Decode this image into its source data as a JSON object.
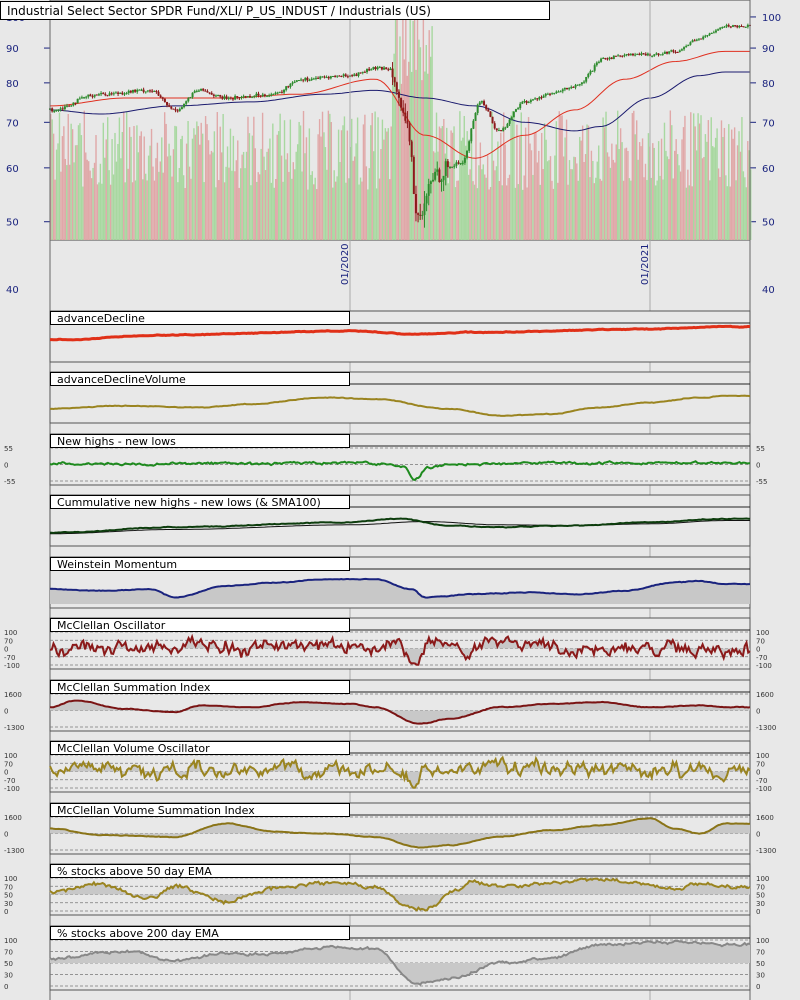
{
  "header": {
    "title": "Industrial Select Sector SPDR Fund/XLI/ P_US_INDUST / Industrials (US)"
  },
  "chart_data": [
    {
      "type": "candlestick",
      "name": "price",
      "title": "Industrial Select Sector SPDR Fund/XLI/ P_US_INDUST / Industrials (US)",
      "scale": "log",
      "ylim": [
        47,
        101
      ],
      "yticks": [
        40,
        50,
        60,
        70,
        80,
        90,
        100
      ],
      "x_tick_labels": [
        "01/2020",
        "01/2021"
      ],
      "x_range": [
        "2019-01",
        "2021-05"
      ],
      "anchors": [
        [
          "2019-01",
          73
        ],
        [
          "2019-03",
          77
        ],
        [
          "2019-05",
          78
        ],
        [
          "2019-06",
          73
        ],
        [
          "2019-07",
          78
        ],
        [
          "2019-08",
          76
        ],
        [
          "2019-10",
          77
        ],
        [
          "2019-11",
          81
        ],
        [
          "2020-01",
          82
        ],
        [
          "2020-02",
          84
        ],
        [
          "2020-02-20",
          84
        ],
        [
          "2020-03-10",
          68
        ],
        [
          "2020-03-23",
          50
        ],
        [
          "2020-04-15",
          59
        ],
        [
          "2020-05-15",
          61
        ],
        [
          "2020-06-08",
          75
        ],
        [
          "2020-06-30",
          68
        ],
        [
          "2020-08",
          75
        ],
        [
          "2020-09",
          77
        ],
        [
          "2020-10",
          79
        ],
        [
          "2020-11-09",
          87
        ],
        [
          "2020-12",
          88
        ],
        [
          "2021-01",
          88
        ],
        [
          "2021-02",
          89
        ],
        [
          "2021-03",
          93
        ],
        [
          "2021-04",
          97
        ]
      ],
      "sma_red_anchors": [
        [
          "2019-01",
          74
        ],
        [
          "2019-04",
          76
        ],
        [
          "2019-08",
          76
        ],
        [
          "2019-11",
          77
        ],
        [
          "2020-02",
          81
        ],
        [
          "2020-04",
          67
        ],
        [
          "2020-06",
          62
        ],
        [
          "2020-08",
          67
        ],
        [
          "2020-10",
          73
        ],
        [
          "2020-12",
          81
        ],
        [
          "2021-02",
          86
        ],
        [
          "2021-04",
          89
        ]
      ],
      "sma_blue_anchors": [
        [
          "2019-01",
          73
        ],
        [
          "2019-03",
          72
        ],
        [
          "2019-06",
          74
        ],
        [
          "2019-09",
          75
        ],
        [
          "2019-12",
          77
        ],
        [
          "2020-02",
          78
        ],
        [
          "2020-04",
          76
        ],
        [
          "2020-06",
          74
        ],
        [
          "2020-08",
          70
        ],
        [
          "2020-10",
          68
        ],
        [
          "2020-11",
          69
        ],
        [
          "2021-01",
          76
        ],
        [
          "2021-03",
          82
        ],
        [
          "2021-04",
          83
        ]
      ],
      "colors": {
        "up": "#2e8b2e",
        "down": "#8b1a1a",
        "sma_red": "#e03020",
        "sma_blue": "#1a1a6e",
        "volume_up": "#a8d8a0",
        "volume_down": "#e0a8a8"
      }
    },
    {
      "type": "line",
      "name": "advance-decline",
      "title": "advanceDecline",
      "anchors": [
        [
          "2019-01",
          0.45
        ],
        [
          "2019-06",
          0.3
        ],
        [
          "2020-01",
          0.18
        ],
        [
          "2020-03-20",
          0.28
        ],
        [
          "2020-06",
          0.22
        ],
        [
          "2021-01",
          0.12
        ],
        [
          "2021-04",
          0.05
        ]
      ],
      "color": "#e03018",
      "fill": false,
      "thick": 3
    },
    {
      "type": "line",
      "name": "advance-decline-volume",
      "title": "advanceDeclineVolume",
      "anchors": [
        [
          "2019-01",
          0.7
        ],
        [
          "2019-04",
          0.6
        ],
        [
          "2019-07",
          0.65
        ],
        [
          "2019-09",
          0.55
        ],
        [
          "2019-12",
          0.35
        ],
        [
          "2020-02",
          0.4
        ],
        [
          "2020-05",
          0.7
        ],
        [
          "2020-07",
          0.9
        ],
        [
          "2020-09",
          0.85
        ],
        [
          "2020-11",
          0.65
        ],
        [
          "2021-01",
          0.5
        ],
        [
          "2021-03",
          0.35
        ],
        [
          "2021-04",
          0.3
        ]
      ],
      "color": "#9a8420",
      "fill": false,
      "thick": 2
    },
    {
      "type": "line",
      "name": "new-highs-lows",
      "title": "New highs - new lows",
      "yticks": [
        "55",
        "0",
        "-55"
      ],
      "anchors": [
        [
          "2019-01",
          0.48
        ],
        [
          "2020-02",
          0.46
        ],
        [
          "2020-03-05",
          0.56
        ],
        [
          "2020-03-18",
          0.98
        ],
        [
          "2020-04-05",
          0.6
        ],
        [
          "2020-05",
          0.48
        ],
        [
          "2021-04",
          0.45
        ]
      ],
      "noise": 0.05,
      "color": "#1e8a1e",
      "fill": false,
      "thick": 2
    },
    {
      "type": "line",
      "name": "cumulative-nh-nl",
      "title": "Cummulative new highs - new lows (& SMA100)",
      "anchors": [
        [
          "2019-01",
          0.72
        ],
        [
          "2019-06",
          0.55
        ],
        [
          "2020-01",
          0.4
        ],
        [
          "2020-03",
          0.3
        ],
        [
          "2020-05",
          0.5
        ],
        [
          "2020-07",
          0.55
        ],
        [
          "2020-10",
          0.5
        ],
        [
          "2021-01",
          0.4
        ],
        [
          "2021-04",
          0.3
        ]
      ],
      "sma_anchors": [
        [
          "2019-01",
          0.75
        ],
        [
          "2019-06",
          0.62
        ],
        [
          "2020-01",
          0.48
        ],
        [
          "2020-04",
          0.38
        ],
        [
          "2020-07",
          0.48
        ],
        [
          "2020-10",
          0.5
        ],
        [
          "2021-01",
          0.45
        ],
        [
          "2021-04",
          0.35
        ]
      ],
      "color": "#0d3d0d",
      "sma_color": "#111111",
      "fill": false,
      "thick": 2
    },
    {
      "type": "area",
      "name": "weinstein-momentum",
      "title": "Weinstein Momentum",
      "anchors": [
        [
          "2019-01",
          0.55
        ],
        [
          "2019-03",
          0.6
        ],
        [
          "2019-05",
          0.55
        ],
        [
          "2019-06",
          0.8
        ],
        [
          "2019-08",
          0.45
        ],
        [
          "2019-10",
          0.35
        ],
        [
          "2019-12",
          0.25
        ],
        [
          "2020-02",
          0.25
        ],
        [
          "2020-03-15",
          0.55
        ],
        [
          "2020-04",
          0.8
        ],
        [
          "2020-06",
          0.7
        ],
        [
          "2020-08",
          0.65
        ],
        [
          "2020-10",
          0.7
        ],
        [
          "2020-12",
          0.6
        ],
        [
          "2021-02",
          0.35
        ],
        [
          "2021-03",
          0.3
        ],
        [
          "2021-04",
          0.4
        ]
      ],
      "color": "#1a237e",
      "fill": true,
      "thick": 2
    },
    {
      "type": "area",
      "name": "mcclellan-oscillator",
      "title": "McClellan Oscillator",
      "yticks": [
        "100",
        "70",
        "0",
        "-70",
        "-100"
      ],
      "anchors": [
        [
          "2019-01",
          0.45
        ],
        [
          "2020-03",
          0.45
        ],
        [
          "2020-03-20",
          0.95
        ],
        [
          "2020-04",
          0.4
        ],
        [
          "2021-04",
          0.5
        ]
      ],
      "noise": 0.28,
      "color": "#8b1a1a",
      "fill": true,
      "thick": 2
    },
    {
      "type": "area",
      "name": "mcclellan-summation",
      "title": "McClellan Summation Index",
      "yticks": [
        "1600",
        "0",
        "-1300"
      ],
      "anchors": [
        [
          "2019-01",
          0.4
        ],
        [
          "2019-02",
          0.2
        ],
        [
          "2019-04",
          0.45
        ],
        [
          "2019-06",
          0.55
        ],
        [
          "2019-07",
          0.35
        ],
        [
          "2019-09",
          0.4
        ],
        [
          "2019-11",
          0.25
        ],
        [
          "2020-01",
          0.3
        ],
        [
          "2020-02",
          0.4
        ],
        [
          "2020-03-25",
          0.9
        ],
        [
          "2020-05",
          0.75
        ],
        [
          "2020-07",
          0.4
        ],
        [
          "2020-09",
          0.3
        ],
        [
          "2020-11",
          0.25
        ],
        [
          "2021-01",
          0.4
        ],
        [
          "2021-03",
          0.35
        ],
        [
          "2021-04",
          0.4
        ]
      ],
      "color": "#7a1414",
      "fill": true,
      "thick": 2
    },
    {
      "type": "area",
      "name": "mcclellan-volume-oscillator",
      "title": "McClellan Volume Oscillator",
      "yticks": [
        "100",
        "70",
        "0",
        "-70",
        "-100"
      ],
      "anchors": [
        [
          "2019-01",
          0.5
        ],
        [
          "2020-03",
          0.5
        ],
        [
          "2020-03-20",
          0.9
        ],
        [
          "2020-04",
          0.4
        ],
        [
          "2021-04",
          0.5
        ]
      ],
      "noise": 0.3,
      "color": "#9a8420",
      "fill": true,
      "thick": 2
    },
    {
      "type": "area",
      "name": "mcclellan-volume-summation",
      "title": "McClellan Volume Summation Index",
      "yticks": [
        "1600",
        "0",
        "-1300"
      ],
      "anchors": [
        [
          "2019-01",
          0.35
        ],
        [
          "2019-03",
          0.55
        ],
        [
          "2019-06",
          0.6
        ],
        [
          "2019-08",
          0.2
        ],
        [
          "2019-10",
          0.45
        ],
        [
          "2019-12",
          0.5
        ],
        [
          "2020-02",
          0.6
        ],
        [
          "2020-03-25",
          0.92
        ],
        [
          "2020-05",
          0.85
        ],
        [
          "2020-07",
          0.6
        ],
        [
          "2020-09",
          0.4
        ],
        [
          "2020-11",
          0.25
        ],
        [
          "2021-01",
          0.05
        ],
        [
          "2021-02",
          0.35
        ],
        [
          "2021-03",
          0.5
        ],
        [
          "2021-04",
          0.2
        ]
      ],
      "color": "#8a7418",
      "fill": true,
      "thick": 2
    },
    {
      "type": "area",
      "name": "pct-above-50ema",
      "title": "% stocks above 50 day EMA",
      "yticks": [
        "100",
        "70",
        "50",
        "30",
        "0"
      ],
      "anchors": [
        [
          "2019-01",
          0.4
        ],
        [
          "2019-03",
          0.2
        ],
        [
          "2019-05",
          0.6
        ],
        [
          "2019-06",
          0.25
        ],
        [
          "2019-08",
          0.7
        ],
        [
          "2019-10",
          0.3
        ],
        [
          "2019-12",
          0.15
        ],
        [
          "2020-02",
          0.3
        ],
        [
          "2020-03-15",
          0.95
        ],
        [
          "2020-04-10",
          0.9
        ],
        [
          "2020-05",
          0.4
        ],
        [
          "2020-06",
          0.1
        ],
        [
          "2020-07",
          0.3
        ],
        [
          "2020-09",
          0.15
        ],
        [
          "2020-11",
          0.05
        ],
        [
          "2021-01",
          0.2
        ],
        [
          "2021-02",
          0.35
        ],
        [
          "2021-03",
          0.15
        ],
        [
          "2021-04",
          0.25
        ]
      ],
      "noise": 0.08,
      "color": "#9a8420",
      "fill": true,
      "thick": 2
    },
    {
      "type": "area",
      "name": "pct-above-200ema",
      "title": "% stocks above 200 day EMA",
      "yticks": [
        "100",
        "70",
        "50",
        "30",
        "0"
      ],
      "anchors": [
        [
          "2019-01",
          0.4
        ],
        [
          "2019-04",
          0.25
        ],
        [
          "2019-06",
          0.45
        ],
        [
          "2019-08",
          0.3
        ],
        [
          "2019-10",
          0.3
        ],
        [
          "2019-12",
          0.15
        ],
        [
          "2020-02",
          0.2
        ],
        [
          "2020-03-20",
          0.95
        ],
        [
          "2020-05",
          0.85
        ],
        [
          "2020-07",
          0.5
        ],
        [
          "2020-09",
          0.4
        ],
        [
          "2020-11",
          0.1
        ],
        [
          "2021-01",
          0.05
        ],
        [
          "2021-03",
          0.05
        ],
        [
          "2021-04",
          0.1
        ]
      ],
      "noise": 0.04,
      "color": "#888888",
      "fill": true,
      "thick": 2
    }
  ]
}
